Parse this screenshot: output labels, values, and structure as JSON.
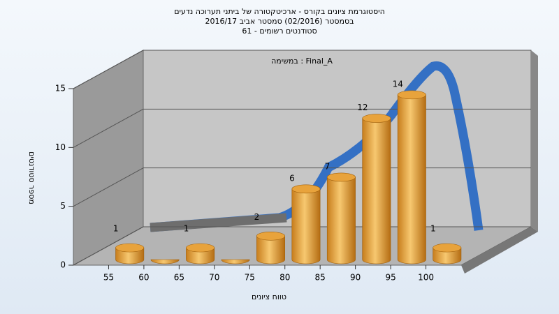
{
  "chart_data": {
    "type": "histogram",
    "title": [
      "היסטוגרמת ציונים בקורס - ארכיטקטורה של ביתני תערוכה נדעים",
      "בסמסטר (02/2016)  סמסטר אביב 2016/17",
      "סטודנטים רשומים - 61"
    ],
    "annotation": "במשימה : Final_A",
    "x_label": "טווח ציונים",
    "y_label": "מספר סטודנטים",
    "bins": [
      55,
      60,
      65,
      70,
      75,
      80,
      85,
      90,
      95,
      100,
      105
    ],
    "values": [
      1,
      0,
      1,
      0,
      2,
      6,
      7,
      12,
      14,
      1
    ],
    "color": "#e8a33c",
    "xlim": [
      50,
      105
    ],
    "xticks": [
      55,
      60,
      65,
      70,
      75,
      80,
      85,
      90,
      95,
      100
    ],
    "ylim": [
      0,
      15
    ],
    "yticks": [
      0,
      5,
      10,
      15
    ],
    "grid": true
  }
}
